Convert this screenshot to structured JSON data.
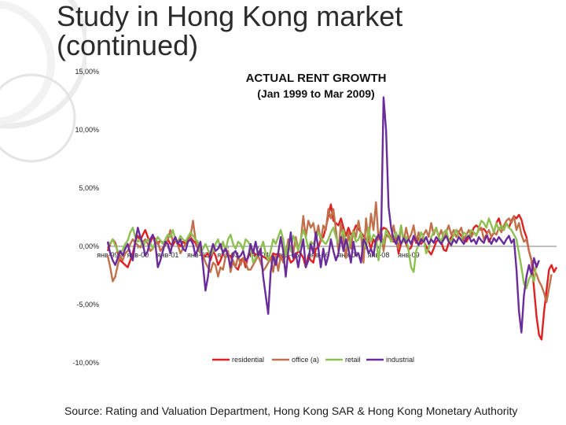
{
  "slide": {
    "title_line1": "Study in Hong Kong market",
    "title_line2": "(continued)",
    "source": "Source: Rating and Valuation Department, Hong Kong SAR & Hong Kong Monetary Authority"
  },
  "chart_data": {
    "type": "line",
    "title": "ACTUAL RENT GROWTH",
    "subtitle": "(Jan 1999 to Mar 2009)",
    "xlabel": "",
    "ylabel": "",
    "ylim": [
      -10,
      15
    ],
    "y_ticks": [
      15,
      10,
      5,
      0,
      -5,
      -10
    ],
    "y_tick_labels": [
      "15,00%",
      "10,00%",
      "5,00%",
      "0,00%",
      "-5,00%",
      "-10,00%"
    ],
    "x_range": [
      "1999-01",
      "2009-03"
    ],
    "x_tick_labels": [
      "янв-99",
      "янв-00",
      "янв-01",
      "янв-02",
      "янв-03",
      "янв-04",
      "янв-05",
      "янв-06",
      "янв-07",
      "янв-08",
      "янв-09"
    ],
    "grid": false,
    "legend_position": "bottom",
    "colors": {
      "residential": "#e02020",
      "office (a)": "#c0704a",
      "retail": "#8dc050",
      "industrial": "#6a2c9a"
    },
    "series": [
      {
        "name": "residential",
        "values": [
          -0.4,
          0.2,
          0.6,
          0.3,
          -0.5,
          -1.2,
          -1.4,
          -1.6,
          -1.8,
          -1.2,
          -0.6,
          0.4,
          0.9,
          0.5,
          1.0,
          1.4,
          0.8,
          0.3,
          0.9,
          0.6,
          0.2,
          0.5,
          0.3,
          0.1,
          0.6,
          0.2,
          0.1,
          0.5,
          0.3,
          0.0,
          0.4,
          0.2,
          0.6,
          0.8,
          0.5,
          0.3,
          -0.2,
          -0.6,
          -1.0,
          -0.8,
          -0.6,
          -1.2,
          -0.4,
          -0.8,
          -1.6,
          -1.2,
          -0.6,
          -0.1,
          -0.8,
          -0.8,
          -1.4,
          -1.8,
          -2.0,
          -1.2,
          -1.0,
          -1.8,
          -0.8,
          -0.6,
          -0.4,
          -0.8,
          -0.6,
          -0.7,
          -0.9,
          -1.0,
          -1.2,
          -1.1,
          -0.6,
          -0.7,
          -0.6,
          -1.1,
          -0.9,
          -0.6,
          -0.8,
          -1.4,
          -1.2,
          -0.8,
          -0.4,
          -0.6,
          -1.0,
          -1.8,
          -0.8,
          -1.2,
          -1.4,
          -0.2,
          -0.1,
          0.6,
          0.8,
          1.6,
          2.6,
          3.6,
          2.2,
          2.0,
          1.8,
          2.4,
          1.6,
          0.9,
          1.6,
          1.0,
          1.2,
          1.8,
          1.5,
          1.2,
          0.9,
          0.6,
          0.5,
          -0.2,
          0.6,
          0.2,
          0.9,
          1.3,
          1.6,
          1.5,
          1.2,
          0.6,
          0.4,
          0.8,
          -0.6,
          0.2,
          0.6,
          0.2,
          -0.3,
          -0.1,
          0.8,
          0.3,
          0.7,
          0.2,
          0.5,
          0.0,
          -0.4,
          -0.7,
          -0.2,
          0.4,
          0.6,
          0.4,
          -0.3,
          -0.4,
          0.3,
          0.8,
          1.0,
          1.4,
          1.2,
          0.9,
          0.5,
          0.4,
          0.8,
          1.0,
          1.6,
          1.8,
          1.6,
          1.4,
          1.5,
          1.2,
          0.4,
          0.8,
          1.2,
          2.0,
          2.4,
          1.6,
          1.4,
          2.0,
          1.6,
          2.2,
          2.6,
          2.4,
          2.7,
          2.3,
          1.4,
          0.8,
          -0.4,
          -1.2,
          -3.6,
          -6.0,
          -7.6,
          -8.0,
          -5.6,
          -3.8,
          -2.0,
          -1.6,
          -2.2,
          -1.8
        ]
      },
      {
        "name": "office (a)",
        "values": [
          -0.8,
          -1.8,
          -3.0,
          -2.6,
          -1.6,
          -0.8,
          -1.2,
          -0.6,
          -0.4,
          0.2,
          0.6,
          0.3,
          0.1,
          -0.1,
          0.4,
          0.6,
          0.2,
          -0.4,
          -0.2,
          0.2,
          0.4,
          -0.4,
          -0.1,
          0.2,
          0.6,
          1.4,
          0.4,
          0.6,
          0.1,
          -0.6,
          -0.2,
          0.2,
          0.4,
          0.8,
          2.2,
          0.6,
          -0.2,
          -0.4,
          -0.8,
          -1.4,
          -1.8,
          -2.2,
          -1.4,
          -1.6,
          -2.6,
          -1.8,
          -2.0,
          -0.9,
          -0.4,
          -2.2,
          -1.2,
          -1.8,
          -0.8,
          -1.6,
          -1.0,
          -1.4,
          -2.0,
          -2.0,
          -1.6,
          -1.2,
          -0.8,
          -1.4,
          -2.1,
          -1.8,
          -1.4,
          -1.0,
          -2.2,
          -0.8,
          -2.1,
          -0.8,
          -1.4,
          -0.6,
          0.6,
          -0.4,
          -0.6,
          0.8,
          -0.2,
          0.4,
          2.6,
          0.8,
          2.2,
          1.6,
          2.0,
          0.8,
          1.8,
          0.4,
          1.8,
          1.4,
          3.2,
          2.4,
          3.2,
          1.4,
          -0.4,
          2.0,
          0.6,
          -1.0,
          1.2,
          -0.2,
          1.4,
          0.8,
          2.2,
          1.0,
          -1.4,
          2.4,
          0.4,
          2.8,
          1.4,
          3.8,
          0.6,
          1.6,
          -0.4,
          1.0,
          0.8,
          0.6,
          1.8,
          0.6,
          -0.2,
          1.8,
          0.4,
          1.6,
          0.6,
          1.0,
          1.8,
          0.4,
          1.2,
          0.4,
          1.0,
          1.4,
          0.8,
          2.0,
          1.0,
          1.6,
          0.8,
          1.4,
          0.6,
          1.2,
          1.8,
          1.0,
          1.4,
          0.8,
          1.2,
          1.6,
          0.6,
          1.0,
          1.4,
          0.8,
          1.2,
          1.0,
          1.4,
          1.6,
          0.6,
          1.0,
          1.4,
          0.8,
          1.2,
          1.0,
          1.6,
          1.2,
          1.8,
          2.2,
          2.4,
          2.0,
          2.6,
          1.4,
          2.0,
          1.0,
          0.4,
          0.6,
          -0.4,
          -1.2,
          -2.0,
          -2.4,
          -3.0,
          -3.4,
          -4.0,
          -4.8,
          -3.6,
          -2.4
        ]
      },
      {
        "name": "retail",
        "values": [
          0.4,
          0.2,
          0.6,
          0.1,
          -0.4,
          -0.6,
          -0.3,
          0.2,
          0.5,
          1.2,
          1.6,
          0.8,
          0.4,
          0.6,
          -0.1,
          0.4,
          0.6,
          0.3,
          -0.2,
          0.4,
          0.8,
          0.5,
          0.2,
          0.6,
          1.0,
          0.8,
          1.4,
          0.6,
          0.4,
          0.9,
          0.6,
          0.4,
          0.8,
          1.2,
          0.9,
          0.6,
          0.4,
          -0.6,
          -0.2,
          0.2,
          -0.3,
          -0.8,
          -0.4,
          0.2,
          0.6,
          -0.2,
          0.4,
          -0.4,
          0.6,
          1.0,
          0.2,
          -0.2,
          0.4,
          0.2,
          -0.3,
          0.6,
          0.4,
          0.0,
          -1.4,
          -1.0,
          -0.6,
          -0.2,
          0.4,
          -0.6,
          -1.2,
          -0.4,
          0.6,
          0.2,
          0.8,
          1.4,
          0.6,
          -0.8,
          0.2,
          -0.4,
          0.9,
          0.4,
          -0.4,
          0.6,
          1.4,
          0.8,
          -0.2,
          0.4,
          0.2,
          0.6,
          1.2,
          0.8,
          0.4,
          0.2,
          0.6,
          1.2,
          1.6,
          0.8,
          0.3,
          0.6,
          1.4,
          0.4,
          -0.3,
          0.8,
          1.2,
          0.4,
          0.6,
          1.2,
          0.4,
          -0.2,
          1.6,
          0.4,
          1.0,
          0.8,
          -1.2,
          0.6,
          0.2,
          1.4,
          1.0,
          0.4,
          0.6,
          1.2,
          0.5,
          1.8,
          0.4,
          0.8,
          -0.4,
          -1.8,
          -2.2,
          -0.4,
          0.2,
          1.2,
          0.8,
          -0.6,
          -0.2,
          0.8,
          1.2,
          1.6,
          0.8,
          0.4,
          1.2,
          1.4,
          0.6,
          0.4,
          1.0,
          1.4,
          0.8,
          0.6,
          1.2,
          1.0,
          0.8,
          1.4,
          1.2,
          0.9,
          1.6,
          2.2,
          2.0,
          1.6,
          2.4,
          1.8,
          1.2,
          2.0,
          1.4,
          1.8,
          1.4,
          2.0,
          1.6,
          1.4,
          1.0,
          0.6,
          -0.6,
          -1.8,
          -3.2,
          -3.6,
          -2.8,
          -2.4,
          -3.0,
          -1.4
        ]
      },
      {
        "name": "industrial",
        "values": [
          0.4,
          -0.6,
          -1.2,
          -1.6,
          -1.0,
          -0.4,
          -0.8,
          -0.2,
          0.2,
          -0.6,
          -1.2,
          0.4,
          1.6,
          0.8,
          0.2,
          -0.8,
          -0.4,
          0.6,
          1.0,
          0.2,
          -1.8,
          -1.2,
          -0.4,
          0.4,
          0.2,
          -0.6,
          0.4,
          0.8,
          0.2,
          0.6,
          -0.2,
          -0.4,
          0.4,
          0.6,
          0.2,
          -0.8,
          -0.2,
          0.4,
          -1.6,
          -3.8,
          -2.6,
          -0.6,
          0.2,
          -0.4,
          -0.2,
          0.2,
          -0.6,
          -0.2,
          -0.8,
          -1.8,
          -0.6,
          -0.4,
          -1.0,
          -0.8,
          -0.4,
          -1.2,
          -1.0,
          0.2,
          -0.6,
          0.4,
          -0.8,
          -0.2,
          -2.6,
          -4.2,
          -5.8,
          -2.2,
          -0.8,
          -1.6,
          -0.6,
          0.8,
          -0.4,
          -2.6,
          -0.4,
          1.2,
          -1.0,
          -0.6,
          -1.8,
          -0.4,
          0.6,
          -1.8,
          -1.2,
          0.2,
          -0.6,
          1.2,
          -0.2,
          -1.8,
          -0.2,
          -1.6,
          -0.8,
          0.6,
          -0.4,
          -1.2,
          -0.6,
          0.8,
          -0.4,
          0.6,
          -0.2,
          -1.4,
          0.4,
          -0.8,
          -0.6,
          -1.4,
          0.6,
          0.2,
          -0.6,
          -0.2,
          -0.8,
          0.6,
          1.0,
          0.4,
          12.8,
          10.0,
          3.4,
          1.6,
          0.6,
          0.2,
          0.9,
          0.2,
          0.7,
          0.3,
          0.6,
          0.2,
          0.9,
          0.5,
          0.1,
          0.6,
          0.4,
          0.8,
          0.2,
          0.6,
          0.3,
          0.8,
          0.5,
          0.2,
          0.6,
          0.9,
          0.4,
          0.1,
          0.6,
          0.3,
          0.8,
          0.5,
          0.2,
          0.7,
          0.9,
          0.4,
          0.6,
          0.2,
          0.8,
          0.5,
          0.3,
          0.9,
          0.6,
          0.2,
          0.7,
          0.4,
          0.8,
          0.5,
          0.2,
          0.6,
          0.9,
          0.3,
          0.6,
          -2.0,
          -5.6,
          -7.4,
          -4.2,
          -2.6,
          -1.6,
          -2.4,
          -1.0,
          -1.8,
          -1.2
        ]
      }
    ]
  }
}
